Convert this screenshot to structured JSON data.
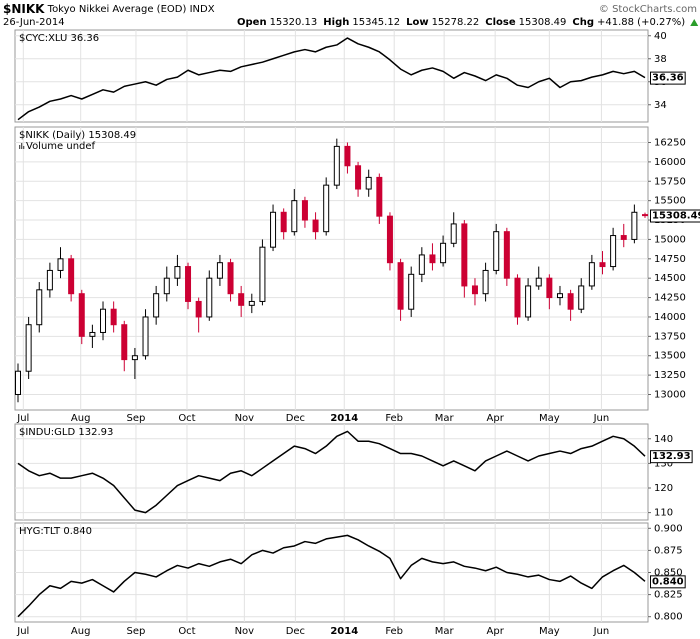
{
  "header": {
    "symbol": "$NIKK",
    "name": "Tokyo Nikkei Average (EOD)",
    "exchange": "INDX",
    "date": "26-Jun-2014",
    "copyright": "© StockCharts.com",
    "quote": [
      {
        "label": "Open",
        "value": "15320.13"
      },
      {
        "label": "High",
        "value": "15345.12"
      },
      {
        "label": "Low",
        "value": "15278.22"
      },
      {
        "label": "Close",
        "value": "15308.49"
      },
      {
        "label": "Chg",
        "value": "+41.88 (+0.27%)"
      }
    ]
  },
  "chart_data": [
    {
      "type": "line",
      "title": "$CYC:XLU 36.36",
      "end_label": "36.36",
      "color": "#000000",
      "grid": true,
      "x": [
        0,
        1,
        2,
        3,
        4,
        5,
        6,
        7,
        8,
        9,
        10,
        11,
        12,
        13,
        14,
        15,
        16,
        17,
        18,
        19,
        20,
        21,
        22,
        23,
        24,
        25,
        26,
        27,
        28,
        29,
        30,
        31,
        32,
        33,
        34,
        35,
        36,
        37,
        38,
        39,
        40,
        41,
        42,
        43,
        44,
        45,
        46,
        47,
        48,
        49,
        50,
        51,
        52,
        53,
        54,
        55,
        56,
        57,
        58,
        59
      ],
      "values": [
        32.7,
        33.4,
        33.8,
        34.3,
        34.5,
        34.8,
        34.5,
        34.9,
        35.3,
        35.1,
        35.6,
        35.8,
        36.0,
        35.7,
        36.2,
        36.4,
        37.0,
        36.6,
        36.8,
        37.0,
        36.9,
        37.3,
        37.5,
        37.7,
        38.0,
        38.3,
        38.6,
        38.8,
        38.6,
        39.0,
        39.2,
        39.8,
        39.3,
        39.0,
        38.6,
        37.9,
        37.1,
        36.6,
        37.0,
        37.2,
        36.9,
        36.3,
        36.8,
        36.5,
        36.1,
        36.6,
        36.3,
        35.7,
        35.5,
        36.0,
        36.3,
        35.5,
        36.0,
        36.1,
        36.4,
        36.6,
        36.9,
        36.7,
        36.9,
        36.36
      ],
      "xlim": [
        0,
        59
      ],
      "ylim": [
        32.5,
        40.5
      ],
      "yticks": [
        34,
        36,
        38,
        40
      ]
    },
    {
      "type": "candlestick",
      "title": "$NIKK (Daily) 15308.49",
      "subtitle": "Volume undef",
      "end_label": "15308.49",
      "up_color": "#000000",
      "down_color": "#cc0033",
      "grid": true,
      "x": [
        0,
        1,
        2,
        3,
        4,
        5,
        6,
        7,
        8,
        9,
        10,
        11,
        12,
        13,
        14,
        15,
        16,
        17,
        18,
        19,
        20,
        21,
        22,
        23,
        24,
        25,
        26,
        27,
        28,
        29,
        30,
        31,
        32,
        33,
        34,
        35,
        36,
        37,
        38,
        39,
        40,
        41,
        42,
        43,
        44,
        45,
        46,
        47,
        48,
        49,
        50,
        51,
        52,
        53,
        54,
        55,
        56,
        57,
        58,
        59
      ],
      "open": [
        13000,
        13300,
        13900,
        14350,
        14600,
        14750,
        14300,
        13750,
        13800,
        14100,
        13900,
        13450,
        13500,
        14000,
        14300,
        14500,
        14650,
        14200,
        14000,
        14500,
        14700,
        14300,
        14150,
        14200,
        14900,
        15350,
        15100,
        15500,
        15250,
        15100,
        15700,
        16200,
        15950,
        15650,
        15800,
        15300,
        14700,
        14100,
        14550,
        14800,
        14700,
        14950,
        15200,
        14400,
        14300,
        14600,
        15100,
        14500,
        14000,
        14400,
        14500,
        14250,
        14300,
        14100,
        14400,
        14700,
        14650,
        15050,
        15000,
        15320.13
      ],
      "high": [
        13400,
        14000,
        14450,
        14700,
        14900,
        14800,
        14350,
        13900,
        14200,
        14200,
        13950,
        13600,
        14100,
        14400,
        14650,
        14800,
        14700,
        14250,
        14600,
        14800,
        14750,
        14400,
        14300,
        15000,
        15450,
        15400,
        15650,
        15550,
        15350,
        15800,
        16300,
        16250,
        16000,
        15900,
        15850,
        15350,
        14750,
        14650,
        14900,
        14950,
        15050,
        15350,
        15250,
        14500,
        14700,
        15200,
        15150,
        14550,
        14500,
        14650,
        14550,
        14400,
        14350,
        14500,
        14800,
        14850,
        15150,
        15200,
        15450,
        15345.12
      ],
      "low": [
        12900,
        13200,
        13800,
        14250,
        14500,
        14200,
        13650,
        13600,
        13700,
        13800,
        13300,
        13200,
        13450,
        13900,
        14200,
        14400,
        14100,
        13800,
        13950,
        14400,
        14200,
        14000,
        14050,
        14150,
        14850,
        15000,
        15050,
        15150,
        15000,
        15050,
        15650,
        15850,
        15550,
        15550,
        15200,
        14600,
        13950,
        14000,
        14450,
        14600,
        14650,
        14900,
        14250,
        14150,
        14200,
        14550,
        14400,
        13900,
        13950,
        14350,
        14100,
        14150,
        13950,
        14050,
        14350,
        14550,
        14600,
        14900,
        14950,
        15278.22
      ],
      "close": [
        13300,
        13900,
        14350,
        14600,
        14750,
        14300,
        13750,
        13800,
        14100,
        13900,
        13450,
        13500,
        14000,
        14300,
        14500,
        14650,
        14200,
        14000,
        14500,
        14700,
        14300,
        14150,
        14200,
        14900,
        15350,
        15100,
        15500,
        15250,
        15100,
        15700,
        16200,
        15950,
        15650,
        15800,
        15300,
        14700,
        14100,
        14550,
        14800,
        14700,
        14950,
        15200,
        14400,
        14300,
        14600,
        15100,
        14500,
        14000,
        14400,
        14500,
        14250,
        14300,
        14100,
        14400,
        14700,
        14650,
        15050,
        15000,
        15350,
        15308.49
      ],
      "xlim": [
        0,
        59
      ],
      "ylim": [
        12800,
        16450
      ],
      "yticks": [
        13000,
        13250,
        13500,
        13750,
        14000,
        14250,
        14500,
        14750,
        15000,
        15250,
        15500,
        15750,
        16000,
        16250
      ],
      "xticks": [
        {
          "value": 0.5,
          "label": "Jul"
        },
        {
          "value": 5.9,
          "label": "Aug"
        },
        {
          "value": 11.1,
          "label": "Sep"
        },
        {
          "value": 15.9,
          "label": "Oct"
        },
        {
          "value": 21.3,
          "label": "Nov"
        },
        {
          "value": 26.1,
          "label": "Dec"
        },
        {
          "value": 30.7,
          "label": "2014",
          "bold": true
        },
        {
          "value": 35.4,
          "label": "Feb"
        },
        {
          "value": 40.1,
          "label": "Mar"
        },
        {
          "value": 44.9,
          "label": "Apr"
        },
        {
          "value": 50,
          "label": "May"
        },
        {
          "value": 54.9,
          "label": "Jun"
        }
      ]
    },
    {
      "type": "line",
      "title": "$INDU:GLD 132.93",
      "end_label": "132.93",
      "color": "#000000",
      "grid": true,
      "x": [
        0,
        1,
        2,
        3,
        4,
        5,
        6,
        7,
        8,
        9,
        10,
        11,
        12,
        13,
        14,
        15,
        16,
        17,
        18,
        19,
        20,
        21,
        22,
        23,
        24,
        25,
        26,
        27,
        28,
        29,
        30,
        31,
        32,
        33,
        34,
        35,
        36,
        37,
        38,
        39,
        40,
        41,
        42,
        43,
        44,
        45,
        46,
        47,
        48,
        49,
        50,
        51,
        52,
        53,
        54,
        55,
        56,
        57,
        58,
        59
      ],
      "values": [
        130,
        127,
        125,
        126,
        124,
        124,
        125,
        126,
        124,
        121,
        116,
        111,
        110,
        113,
        117,
        121,
        123,
        125,
        124,
        123,
        126,
        127,
        125,
        128,
        131,
        134,
        137,
        136,
        134,
        137,
        141,
        143,
        139,
        139,
        138,
        136,
        134,
        134,
        133,
        131,
        129,
        131,
        129,
        127,
        131,
        133,
        135,
        133,
        131,
        133,
        134,
        135,
        134,
        136,
        137,
        139,
        141,
        140,
        137,
        132.93
      ],
      "xlim": [
        0,
        59
      ],
      "ylim": [
        107,
        146
      ],
      "yticks": [
        110,
        120,
        130,
        140
      ]
    },
    {
      "type": "line",
      "title": "HYG:TLT 0.840",
      "end_label": "0.840",
      "color": "#000000",
      "grid": true,
      "x": [
        0,
        1,
        2,
        3,
        4,
        5,
        6,
        7,
        8,
        9,
        10,
        11,
        12,
        13,
        14,
        15,
        16,
        17,
        18,
        19,
        20,
        21,
        22,
        23,
        24,
        25,
        26,
        27,
        28,
        29,
        30,
        31,
        32,
        33,
        34,
        35,
        36,
        37,
        38,
        39,
        40,
        41,
        42,
        43,
        44,
        45,
        46,
        47,
        48,
        49,
        50,
        51,
        52,
        53,
        54,
        55,
        56,
        57,
        58,
        59
      ],
      "values": [
        0.8,
        0.812,
        0.825,
        0.835,
        0.832,
        0.84,
        0.838,
        0.842,
        0.835,
        0.828,
        0.84,
        0.85,
        0.848,
        0.845,
        0.852,
        0.858,
        0.855,
        0.86,
        0.857,
        0.862,
        0.865,
        0.86,
        0.87,
        0.875,
        0.872,
        0.878,
        0.88,
        0.885,
        0.883,
        0.888,
        0.89,
        0.892,
        0.887,
        0.88,
        0.874,
        0.866,
        0.843,
        0.858,
        0.866,
        0.862,
        0.86,
        0.862,
        0.857,
        0.855,
        0.852,
        0.856,
        0.85,
        0.848,
        0.845,
        0.847,
        0.842,
        0.84,
        0.846,
        0.838,
        0.832,
        0.845,
        0.852,
        0.858,
        0.85,
        0.84
      ],
      "xlim": [
        0,
        59
      ],
      "ylim": [
        0.794,
        0.906
      ],
      "yticks": [
        {
          "value": 0.8,
          "label": "0.800"
        },
        {
          "value": 0.825,
          "label": "0.825"
        },
        {
          "value": 0.85,
          "label": "0.850"
        },
        {
          "value": 0.875,
          "label": "0.875"
        },
        {
          "value": 0.9,
          "label": "0.900"
        }
      ],
      "xticks": [
        {
          "value": 0.5,
          "label": "Jul"
        },
        {
          "value": 5.9,
          "label": "Aug"
        },
        {
          "value": 11.1,
          "label": "Sep"
        },
        {
          "value": 15.9,
          "label": "Oct"
        },
        {
          "value": 21.3,
          "label": "Nov"
        },
        {
          "value": 26.1,
          "label": "Dec"
        },
        {
          "value": 30.7,
          "label": "2014",
          "bold": true
        },
        {
          "value": 35.4,
          "label": "Feb"
        },
        {
          "value": 40.1,
          "label": "Mar"
        },
        {
          "value": 44.9,
          "label": "Apr"
        },
        {
          "value": 50,
          "label": "May"
        },
        {
          "value": 54.9,
          "label": "Jun"
        }
      ]
    }
  ]
}
